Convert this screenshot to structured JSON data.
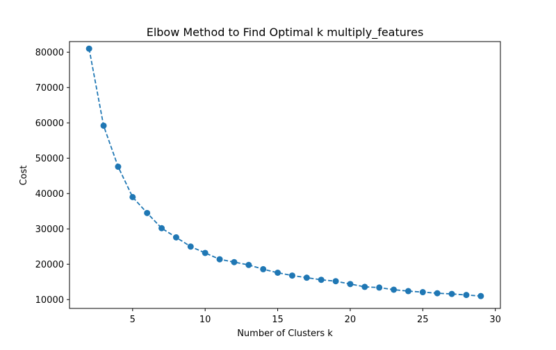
{
  "chart_data": {
    "type": "line",
    "title": "Elbow Method to Find Optimal k multiply_features",
    "xlabel": "Number of Clusters k",
    "ylabel": "Cost",
    "xlim": [
      0.65,
      30.35
    ],
    "ylim": [
      7500,
      83000
    ],
    "xticks": [
      5,
      10,
      15,
      20,
      25,
      30
    ],
    "yticks": [
      10000,
      20000,
      30000,
      40000,
      50000,
      60000,
      70000,
      80000
    ],
    "x": [
      2,
      3,
      4,
      5,
      6,
      7,
      8,
      9,
      10,
      11,
      12,
      13,
      14,
      15,
      16,
      17,
      18,
      19,
      20,
      21,
      22,
      23,
      24,
      25,
      26,
      27,
      28,
      29
    ],
    "y": [
      81000,
      59200,
      47600,
      39000,
      34500,
      30200,
      27600,
      25000,
      23200,
      21400,
      20600,
      19800,
      18600,
      17600,
      16800,
      16200,
      15600,
      15200,
      14400,
      13600,
      13400,
      12800,
      12400,
      12100,
      11800,
      11600,
      11300,
      11000
    ],
    "line_style": "dashed",
    "marker": "circle",
    "color": "#1f77b4",
    "grid": false
  }
}
